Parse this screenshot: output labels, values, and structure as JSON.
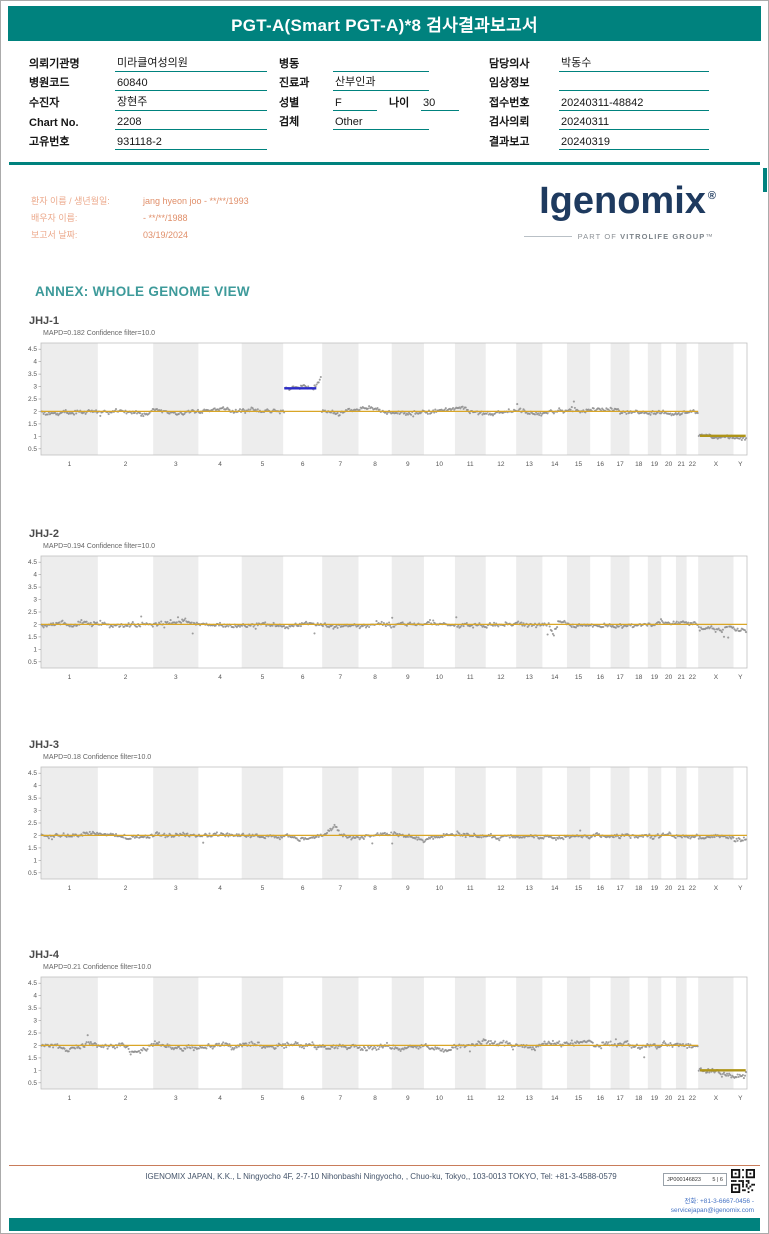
{
  "header": {
    "title": "PGT-A(Smart PGT-A)*8 검사결과보고서"
  },
  "info": {
    "col1": [
      {
        "label": "의뢰기관명",
        "value": "미라클여성의원"
      },
      {
        "label": "병원코드",
        "value": "60840"
      },
      {
        "label": "수진자",
        "value": "장현주"
      },
      {
        "label": "Chart No.",
        "value": "2208"
      },
      {
        "label": "고유번호",
        "value": "931118-2"
      }
    ],
    "col2": [
      {
        "label": "병동",
        "value": ""
      },
      {
        "label": "진료과",
        "value": "산부인과"
      },
      {
        "label": "성별",
        "value": "F",
        "label2": "나이",
        "value2": "30"
      },
      {
        "label": "검체",
        "value": "Other"
      }
    ],
    "col3": [
      {
        "label": "담당의사",
        "value": "박동수"
      },
      {
        "label": "임상정보",
        "value": ""
      },
      {
        "label": "접수번호",
        "value": "20240311-48842"
      },
      {
        "label": "검사의뢰",
        "value": "20240311"
      },
      {
        "label": "결과보고",
        "value": "20240319"
      }
    ]
  },
  "patient": {
    "rows": [
      {
        "label": "환자 이름 / 생년월일:",
        "value": "jang hyeon joo - **/**/1993"
      },
      {
        "label": "배우자 이름:",
        "value": "- **/**/1988"
      },
      {
        "label": "보고서 날짜:",
        "value": "03/19/2024"
      }
    ]
  },
  "logo": {
    "text": "Igenomix",
    "registered": "®",
    "tagline_prefix": "PART OF ",
    "tagline_brand": "VITROLIFE GROUP",
    "tm": "™"
  },
  "annex_title": "ANNEX: WHOLE GENOME VIEW",
  "chart_data": {
    "type": "scatter",
    "description": "Whole genome copy-number view; grey dots = bin copy number per chromosome, orange line = baseline CN 2, blue segment = chromosome 6 gain call (JHJ-1), dark-yellow segments = CN 1 over X/Y",
    "shared": {
      "x_labels": [
        "1",
        "2",
        "3",
        "4",
        "5",
        "6",
        "7",
        "8",
        "9",
        "10",
        "11",
        "12",
        "13",
        "14",
        "15",
        "16",
        "17",
        "18",
        "19",
        "20",
        "21",
        "22",
        "X",
        "Y"
      ],
      "chrom_sizes": [
        249,
        243,
        198,
        190,
        182,
        171,
        159,
        146,
        141,
        136,
        135,
        134,
        115,
        107,
        102,
        90,
        83,
        80,
        59,
        64,
        47,
        51,
        155,
        59
      ],
      "yticks": [
        0.5,
        1,
        1.5,
        2,
        2.5,
        3,
        3.5,
        4,
        4.5
      ],
      "ymin": 0.25,
      "ymax": 4.75
    },
    "charts": [
      {
        "id": "JHJ-1",
        "subtitle": "MAPD=0.182 Confidence filter=10.0",
        "seed": 101,
        "noise": 1.0,
        "regions": [
          {
            "c": 6,
            "f0": 0.03,
            "f1": 0.78,
            "v": 2.93
          },
          {
            "c": 6,
            "f0": 0.78,
            "f1": 0.97,
            "v": 2.93,
            "v2": 3.35
          },
          {
            "c": 23,
            "f0": 0,
            "f1": 1,
            "v": 1.03
          },
          {
            "c": 24,
            "f0": 0,
            "f1": 1,
            "v": 0.98
          }
        ],
        "baselines": [
          {
            "c0": 1,
            "f0": 0,
            "c1": 22,
            "f1": 1,
            "v": 2,
            "color": "orange",
            "w": 1.3
          },
          {
            "c0": 23,
            "f0": 0.05,
            "c1": 24,
            "f1": 0.9,
            "v": 1.02,
            "color": "olive",
            "w": 2.4
          }
        ],
        "calls": [
          {
            "c0": 6,
            "f0": 0.03,
            "c1": 6,
            "f1": 0.85,
            "v": 2.93,
            "color": "blue",
            "w": 2.4
          }
        ]
      },
      {
        "id": "JHJ-2",
        "subtitle": "MAPD=0.194 Confidence filter=10.0",
        "seed": 202,
        "noise": 1.05,
        "regions": [
          {
            "c": 14,
            "f0": 0.25,
            "f1": 0.45,
            "v": 2,
            "v2": 1.5
          },
          {
            "c": 14,
            "f0": 0.45,
            "f1": 0.65,
            "v": 1.5,
            "v2": 2
          },
          {
            "c": 23,
            "f0": 0,
            "f1": 1,
            "v": 1.85
          },
          {
            "c": 24,
            "f0": 0,
            "f1": 1,
            "v": 1.72
          }
        ],
        "baselines": [
          {
            "c0": 1,
            "f0": 0,
            "c1": 24,
            "f1": 1,
            "v": 2,
            "color": "orange",
            "w": 1.3
          }
        ],
        "calls": []
      },
      {
        "id": "JHJ-3",
        "subtitle": "MAPD=0.18 Confidence filter=10.0",
        "seed": 303,
        "noise": 0.95,
        "regions": [
          {
            "c": 7,
            "f0": 0.1,
            "f1": 0.35,
            "v": 2.05,
            "v2": 2.45
          },
          {
            "c": 7,
            "f0": 0.35,
            "f1": 0.6,
            "v": 2.45,
            "v2": 2
          },
          {
            "c": 23,
            "f0": 0,
            "f1": 1,
            "v": 1.93
          },
          {
            "c": 24,
            "f0": 0,
            "f1": 1,
            "v": 1.85
          }
        ],
        "baselines": [
          {
            "c0": 1,
            "f0": 0,
            "c1": 24,
            "f1": 1,
            "v": 2,
            "color": "orange",
            "w": 1.3
          }
        ],
        "calls": []
      },
      {
        "id": "JHJ-4",
        "subtitle": "MAPD=0.21 Confidence filter=10.0",
        "seed": 404,
        "noise": 1.25,
        "regions": [
          {
            "c": 2,
            "f0": 0.4,
            "f1": 0.6,
            "v": 2,
            "v2": 1.62
          },
          {
            "c": 2,
            "f0": 0.6,
            "f1": 1,
            "v": 1.62,
            "v2": 2
          },
          {
            "c": 23,
            "f0": 0,
            "f1": 1,
            "v": 1
          },
          {
            "c": 24,
            "f0": 0,
            "f1": 1,
            "v": 0.95
          }
        ],
        "baselines": [
          {
            "c0": 1,
            "f0": 0,
            "c1": 22,
            "f1": 1,
            "v": 2,
            "color": "orange",
            "w": 1.3
          },
          {
            "c0": 23,
            "f0": 0.05,
            "c1": 24,
            "f1": 0.9,
            "v": 1,
            "color": "olive",
            "w": 2.4
          }
        ],
        "calls": []
      }
    ]
  },
  "footer": {
    "address": "IGENOMIX JAPAN, K.K., L Ningyocho 4F, 2-7-10 Nihonbashi Ningyocho, , Chuo-ku, Tokyo,, 103-0013 TOKYO, Tel: +81-3-4588-0579",
    "doc_id": "JP000146823",
    "page_indicator": "5 | 6",
    "contact": "전화: +81-3-6667-0456 - servicejapan@igenomix.com"
  },
  "colors": {
    "teal": "#00827E",
    "orange": "#D9A626",
    "olive": "#AE9418",
    "blue": "#2A2AC8",
    "dot": "#8A8A8A",
    "salmon": "#E89A7A",
    "navy": "#1E3A5F",
    "band": "#EDEDED"
  }
}
